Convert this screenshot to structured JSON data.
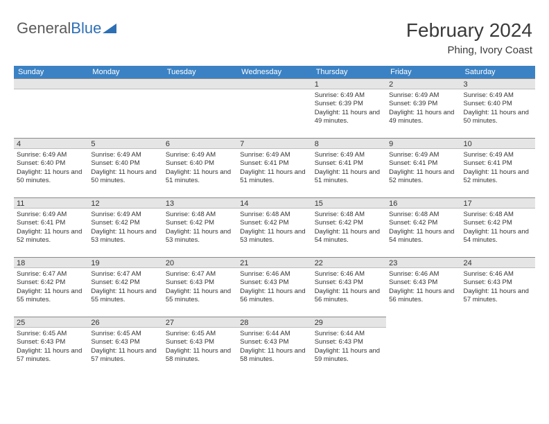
{
  "brand": {
    "part1": "General",
    "part2": "Blue"
  },
  "title": "February 2024",
  "location": "Phing, Ivory Coast",
  "weekday_header_bg": "#3b82c4",
  "weekday_header_fg": "#ffffff",
  "daynum_bg": "#e5e5e5",
  "text_color": "#333333",
  "weekdays": [
    "Sunday",
    "Monday",
    "Tuesday",
    "Wednesday",
    "Thursday",
    "Friday",
    "Saturday"
  ],
  "leading_blanks": 4,
  "days": [
    {
      "n": 1,
      "sunrise": "6:49 AM",
      "sunset": "6:39 PM",
      "daylight": "11 hours and 49 minutes."
    },
    {
      "n": 2,
      "sunrise": "6:49 AM",
      "sunset": "6:39 PM",
      "daylight": "11 hours and 49 minutes."
    },
    {
      "n": 3,
      "sunrise": "6:49 AM",
      "sunset": "6:40 PM",
      "daylight": "11 hours and 50 minutes."
    },
    {
      "n": 4,
      "sunrise": "6:49 AM",
      "sunset": "6:40 PM",
      "daylight": "11 hours and 50 minutes."
    },
    {
      "n": 5,
      "sunrise": "6:49 AM",
      "sunset": "6:40 PM",
      "daylight": "11 hours and 50 minutes."
    },
    {
      "n": 6,
      "sunrise": "6:49 AM",
      "sunset": "6:40 PM",
      "daylight": "11 hours and 51 minutes."
    },
    {
      "n": 7,
      "sunrise": "6:49 AM",
      "sunset": "6:41 PM",
      "daylight": "11 hours and 51 minutes."
    },
    {
      "n": 8,
      "sunrise": "6:49 AM",
      "sunset": "6:41 PM",
      "daylight": "11 hours and 51 minutes."
    },
    {
      "n": 9,
      "sunrise": "6:49 AM",
      "sunset": "6:41 PM",
      "daylight": "11 hours and 52 minutes."
    },
    {
      "n": 10,
      "sunrise": "6:49 AM",
      "sunset": "6:41 PM",
      "daylight": "11 hours and 52 minutes."
    },
    {
      "n": 11,
      "sunrise": "6:49 AM",
      "sunset": "6:41 PM",
      "daylight": "11 hours and 52 minutes."
    },
    {
      "n": 12,
      "sunrise": "6:49 AM",
      "sunset": "6:42 PM",
      "daylight": "11 hours and 53 minutes."
    },
    {
      "n": 13,
      "sunrise": "6:48 AM",
      "sunset": "6:42 PM",
      "daylight": "11 hours and 53 minutes."
    },
    {
      "n": 14,
      "sunrise": "6:48 AM",
      "sunset": "6:42 PM",
      "daylight": "11 hours and 53 minutes."
    },
    {
      "n": 15,
      "sunrise": "6:48 AM",
      "sunset": "6:42 PM",
      "daylight": "11 hours and 54 minutes."
    },
    {
      "n": 16,
      "sunrise": "6:48 AM",
      "sunset": "6:42 PM",
      "daylight": "11 hours and 54 minutes."
    },
    {
      "n": 17,
      "sunrise": "6:48 AM",
      "sunset": "6:42 PM",
      "daylight": "11 hours and 54 minutes."
    },
    {
      "n": 18,
      "sunrise": "6:47 AM",
      "sunset": "6:42 PM",
      "daylight": "11 hours and 55 minutes."
    },
    {
      "n": 19,
      "sunrise": "6:47 AM",
      "sunset": "6:42 PM",
      "daylight": "11 hours and 55 minutes."
    },
    {
      "n": 20,
      "sunrise": "6:47 AM",
      "sunset": "6:43 PM",
      "daylight": "11 hours and 55 minutes."
    },
    {
      "n": 21,
      "sunrise": "6:46 AM",
      "sunset": "6:43 PM",
      "daylight": "11 hours and 56 minutes."
    },
    {
      "n": 22,
      "sunrise": "6:46 AM",
      "sunset": "6:43 PM",
      "daylight": "11 hours and 56 minutes."
    },
    {
      "n": 23,
      "sunrise": "6:46 AM",
      "sunset": "6:43 PM",
      "daylight": "11 hours and 56 minutes."
    },
    {
      "n": 24,
      "sunrise": "6:46 AM",
      "sunset": "6:43 PM",
      "daylight": "11 hours and 57 minutes."
    },
    {
      "n": 25,
      "sunrise": "6:45 AM",
      "sunset": "6:43 PM",
      "daylight": "11 hours and 57 minutes."
    },
    {
      "n": 26,
      "sunrise": "6:45 AM",
      "sunset": "6:43 PM",
      "daylight": "11 hours and 57 minutes."
    },
    {
      "n": 27,
      "sunrise": "6:45 AM",
      "sunset": "6:43 PM",
      "daylight": "11 hours and 58 minutes."
    },
    {
      "n": 28,
      "sunrise": "6:44 AM",
      "sunset": "6:43 PM",
      "daylight": "11 hours and 58 minutes."
    },
    {
      "n": 29,
      "sunrise": "6:44 AM",
      "sunset": "6:43 PM",
      "daylight": "11 hours and 59 minutes."
    }
  ],
  "labels": {
    "sunrise": "Sunrise:",
    "sunset": "Sunset:",
    "daylight": "Daylight:"
  }
}
